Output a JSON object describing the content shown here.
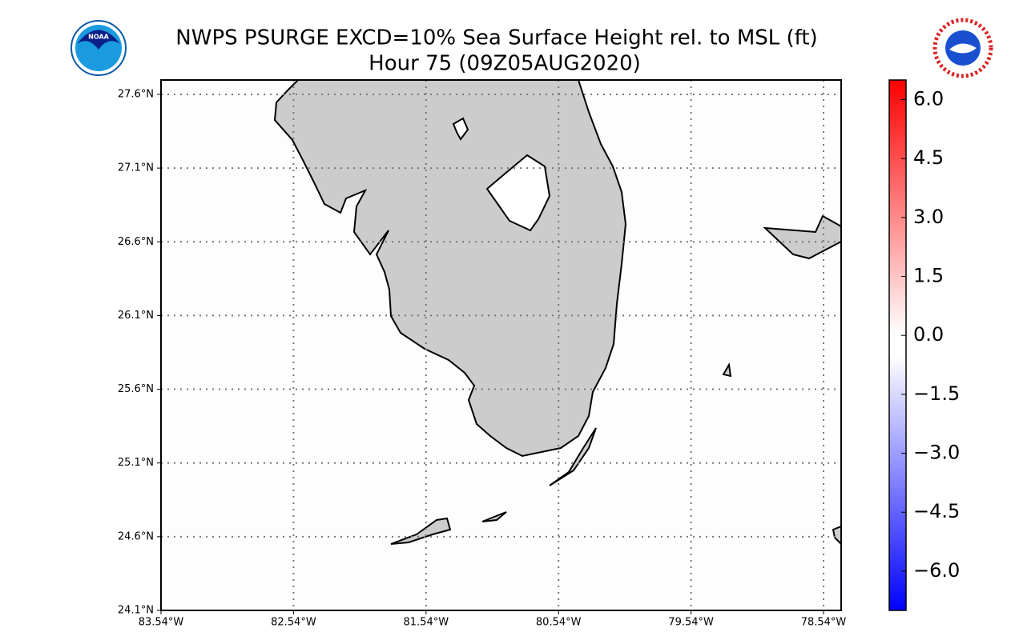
{
  "header": {
    "title": "NWPS PSURGE EXCD=10% Sea Surface Height rel. to MSL (ft)",
    "subtitle": "Hour 75 (09Z05AUG2020)",
    "logo_text": "NOAA"
  },
  "map": {
    "lat_labels": [
      "24.1°N",
      "24.6°N",
      "25.1°N",
      "25.6°N",
      "26.1°N",
      "26.6°N",
      "27.1°N",
      "27.6°N"
    ],
    "lon_labels": [
      "83.54°W",
      "82.54°W",
      "81.54°W",
      "80.54°W",
      "79.54°W",
      "78.54°W"
    ]
  },
  "colorbar": {
    "range": [
      -7,
      6.5
    ],
    "ticks": [
      {
        "value": 6,
        "label": "6.0"
      },
      {
        "value": 4.5,
        "label": "4.5"
      },
      {
        "value": 3,
        "label": "3.0"
      },
      {
        "value": 1.5,
        "label": "1.5"
      },
      {
        "value": 0,
        "label": "0.0"
      },
      {
        "value": -1.5,
        "label": "−1.5"
      },
      {
        "value": -3,
        "label": "−3.0"
      },
      {
        "value": -4.5,
        "label": "−4.5"
      },
      {
        "value": -6,
        "label": "−6.0"
      }
    ]
  }
}
